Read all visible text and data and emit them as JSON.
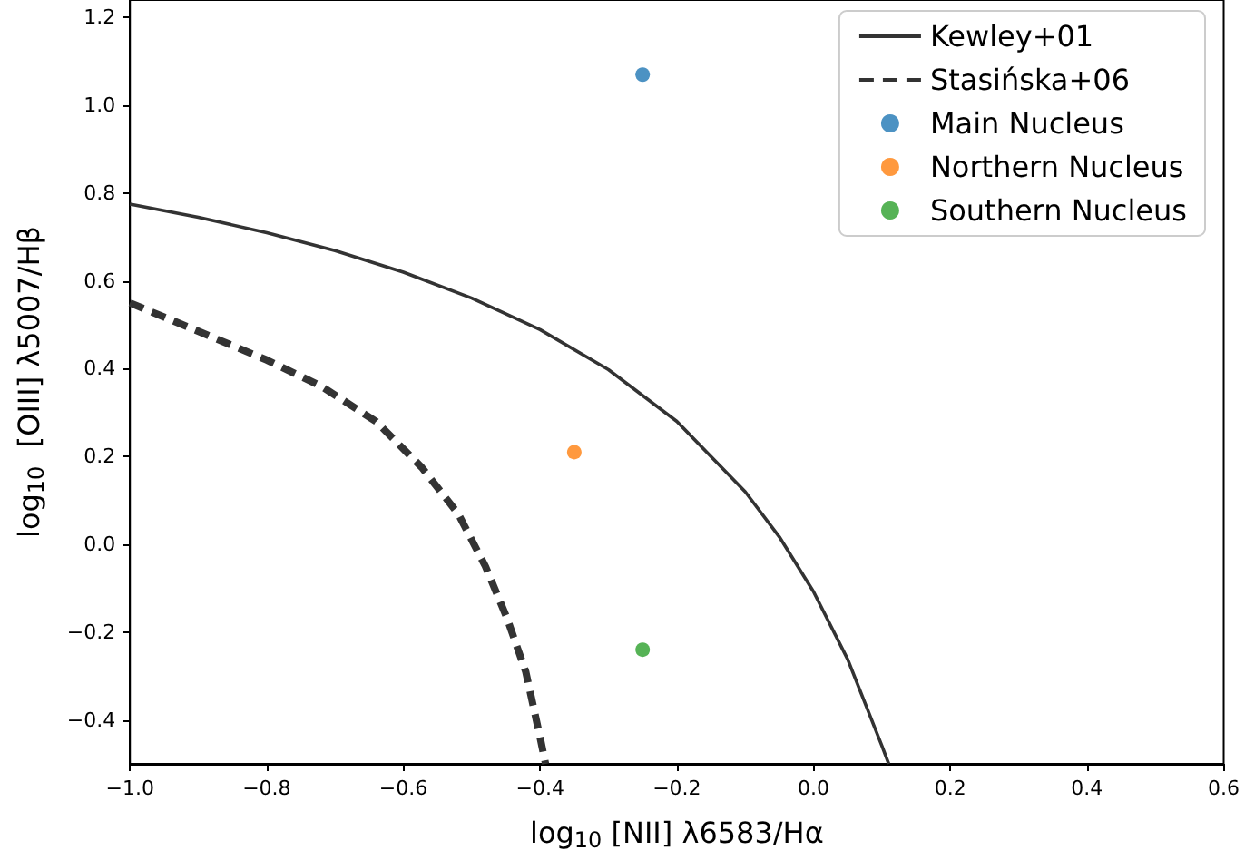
{
  "chart_data": {
    "type": "line",
    "xlabel": "log$_{10}$ [NII] λ6583/Hα",
    "ylabel": "log$_{10}$  [OIII] λ5007/Hβ",
    "xlim": [
      -1.0,
      0.6
    ],
    "ylim": [
      -0.5,
      1.24
    ],
    "xticks": [
      {
        "value": -1.0,
        "label": "−1.0"
      },
      {
        "value": -0.8,
        "label": "−0.8"
      },
      {
        "value": -0.6,
        "label": "−0.6"
      },
      {
        "value": -0.4,
        "label": "−0.4"
      },
      {
        "value": -0.2,
        "label": "−0.2"
      },
      {
        "value": 0,
        "label": "0.0"
      },
      {
        "value": 0.2,
        "label": "0.2"
      },
      {
        "value": 0.4,
        "label": "0.4"
      },
      {
        "value": 0.6,
        "label": "0.6"
      }
    ],
    "yticks": [
      {
        "value": -0.4,
        "label": "−0.4"
      },
      {
        "value": -0.2,
        "label": "−0.2"
      },
      {
        "value": 0,
        "label": "0.0"
      },
      {
        "value": 0.2,
        "label": "0.2"
      },
      {
        "value": 0.4,
        "label": "0.4"
      },
      {
        "value": 0.6,
        "label": "0.6"
      },
      {
        "value": 0.8,
        "label": "0.8"
      },
      {
        "value": 1.0,
        "label": "1.0"
      },
      {
        "value": 1.2,
        "label": "1.2"
      }
    ],
    "grid": false,
    "legend": "top right",
    "series": [
      {
        "name": "Kewley+01",
        "color": "#333333",
        "line_style": "solid",
        "x": [
          -1.0,
          -0.9,
          -0.8,
          -0.7,
          -0.6,
          -0.5,
          -0.4,
          -0.3,
          -0.2,
          -0.1,
          -0.05,
          0,
          0.05,
          0.1,
          0.11
        ],
        "values": [
          0.775,
          0.745,
          0.71,
          0.669,
          0.62,
          0.561,
          0.489,
          0.398,
          0.28,
          0.12,
          0.017,
          -0.108,
          -0.262,
          -0.459,
          -0.5
        ]
      },
      {
        "name": "Stasińska+06",
        "color": "#333333",
        "line_style": "dashed",
        "x": [
          -1.0,
          -0.907,
          -0.8,
          -0.72,
          -0.64,
          -0.573,
          -0.52,
          -0.48,
          -0.448,
          -0.421,
          -0.4,
          -0.392
        ],
        "values": [
          0.55,
          0.49,
          0.42,
          0.36,
          0.28,
          0.175,
          0.07,
          -0.05,
          -0.17,
          -0.29,
          -0.44,
          -0.5
        ]
      },
      {
        "type": "scatter",
        "name": "Main Nucleus",
        "color": "#1f77b4",
        "marker": "circle",
        "x": [
          -0.25
        ],
        "values": [
          1.07
        ]
      },
      {
        "type": "scatter",
        "name": "Northern Nucleus",
        "color": "#ff7f0e",
        "marker": "circle",
        "x": [
          -0.35
        ],
        "values": [
          0.21
        ]
      },
      {
        "type": "scatter",
        "name": "Southern Nucleus",
        "color": "#2ca02c",
        "marker": "circle",
        "x": [
          -0.25
        ],
        "values": [
          -0.24
        ]
      }
    ]
  }
}
